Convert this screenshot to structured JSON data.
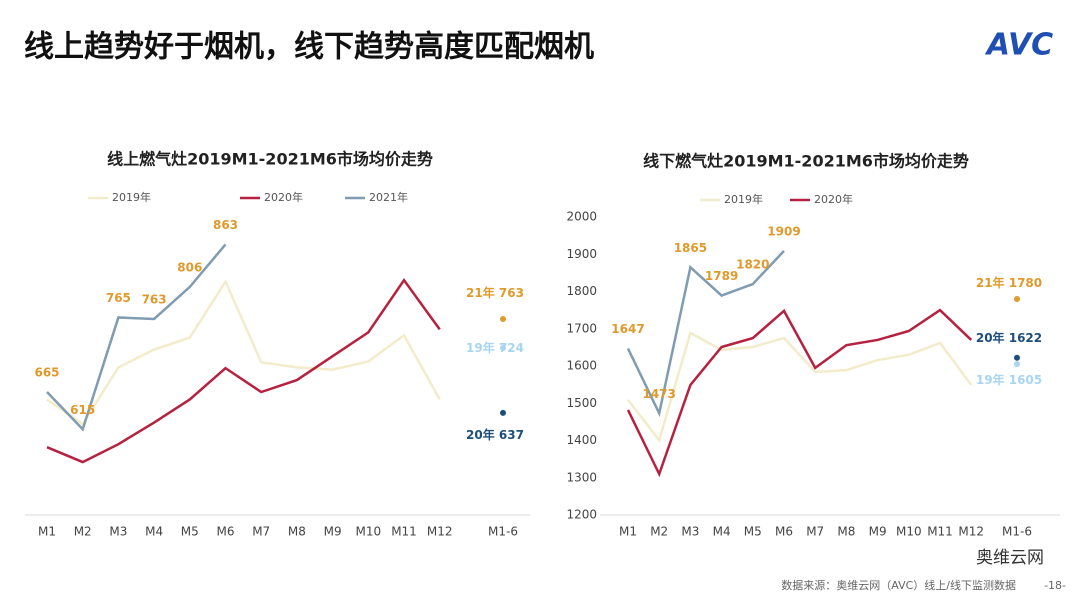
{
  "title": "线上趋势好于烟机，线下趋势高度匹配烟机",
  "logo": "AVC",
  "source": "数据来源：奥维云网（AVC）线上/线下监测数据",
  "page": "-18-",
  "wechat": "奥维云网",
  "chart_data": [
    {
      "type": "line",
      "title": "线上燃气灶2019M1-2021M6市场均价走势",
      "categories": [
        "M1",
        "M2",
        "M3",
        "M4",
        "M5",
        "M6",
        "M7",
        "M8",
        "M9",
        "M10",
        "M11",
        "M12"
      ],
      "ylim": [
        500,
        940
      ],
      "series": [
        {
          "name": "2019年",
          "color": "#f3eccb",
          "values": [
            655,
            622,
            698,
            722,
            738,
            813,
            705,
            698,
            695,
            706,
            741,
            655
          ]
        },
        {
          "name": "2020年",
          "color": "#b5213f",
          "values": [
            591,
            571,
            595,
            624,
            655,
            697,
            665,
            681,
            713,
            745,
            815,
            749
          ]
        },
        {
          "name": "2021年",
          "color": "#7f9cb0",
          "label_color": "#e09a2c",
          "labeled": true,
          "values": [
            665,
            615,
            765,
            763,
            806,
            863,
            null,
            null,
            null,
            null,
            null,
            null
          ]
        }
      ],
      "summary_label": "M1-6",
      "summary": [
        {
          "name": "21年",
          "value": 763,
          "color": "#e09a2c"
        },
        {
          "name": "19年",
          "value": 724,
          "color": "#a8d5f0"
        },
        {
          "name": "20年",
          "value": 637,
          "color": "#1d4e7a"
        }
      ]
    },
    {
      "type": "line",
      "title": "线下燃气灶2019M1-2021M6市场均价走势",
      "categories": [
        "M1",
        "M2",
        "M3",
        "M4",
        "M5",
        "M6",
        "M7",
        "M8",
        "M9",
        "M10",
        "M11",
        "M12"
      ],
      "ylim": [
        1200,
        2000
      ],
      "yticks": [
        1200,
        1300,
        1400,
        1500,
        1600,
        1700,
        1800,
        1900,
        2000
      ],
      "series": [
        {
          "name": "2019年",
          "color": "#f3eccb",
          "values": [
            1509,
            1401,
            1689,
            1643,
            1651,
            1675,
            1584,
            1589,
            1616,
            1630,
            1662,
            1549
          ]
        },
        {
          "name": "2020年",
          "color": "#b5213f",
          "values": [
            1482,
            1310,
            1549,
            1651,
            1675,
            1748,
            1595,
            1656,
            1670,
            1694,
            1750,
            1670
          ]
        },
        {
          "color": "#7f9cb0",
          "label_color": "#e09a2c",
          "labeled": true,
          "values": [
            1647,
            1473,
            1865,
            1789,
            1820,
            1909,
            null,
            null,
            null,
            null,
            null,
            null
          ]
        }
      ],
      "summary_label": "M1-6",
      "summary": [
        {
          "name": "21年",
          "value": 1780,
          "color": "#e09a2c"
        },
        {
          "name": "20年",
          "value": 1622,
          "color": "#1d4e7a"
        },
        {
          "name": "19年",
          "value": 1605,
          "color": "#a8d5f0"
        }
      ]
    }
  ]
}
